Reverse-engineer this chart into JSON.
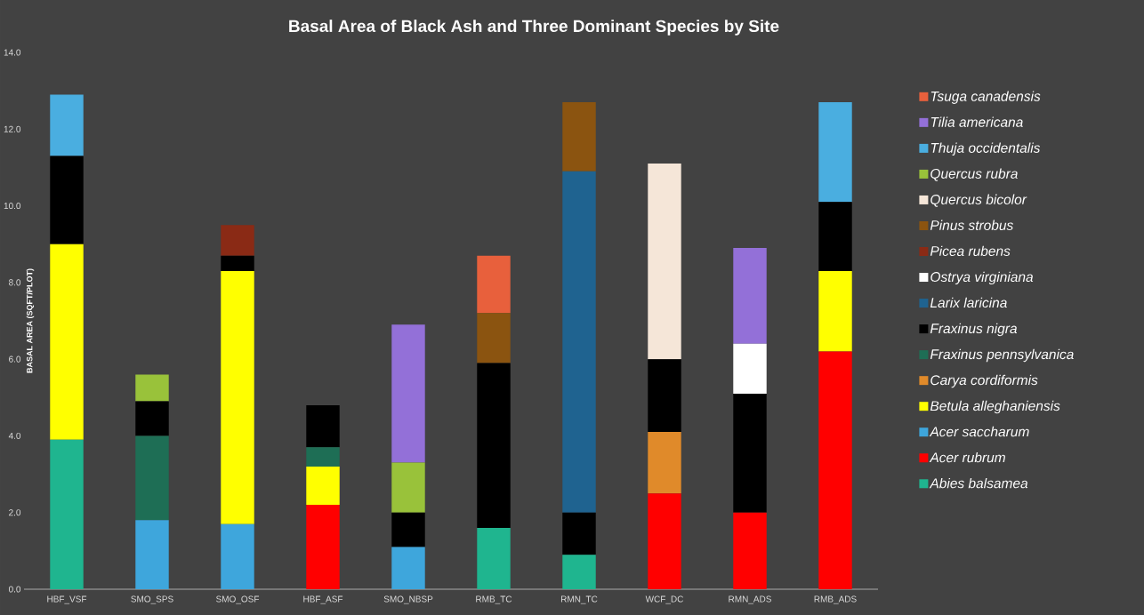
{
  "chart_data": {
    "type": "bar",
    "stacked": true,
    "title": "Basal Area of Black Ash and Three Dominant Species by Site",
    "ylabel": "BASAL AREA (SQFT/PLOT)",
    "categories": [
      "HBF_VSF",
      "SMO_SPS",
      "SMO_OSF",
      "HBF_ASF",
      "SMO_NBSP",
      "RMB_TC",
      "RMN_TC",
      "WCF_DC",
      "RMN_ADS",
      "RMB_ADS"
    ],
    "ylim": [
      0,
      14
    ],
    "yticks": [
      {
        "value": 0,
        "label": "0.0"
      },
      {
        "value": 2,
        "label": "2.0"
      },
      {
        "value": 4,
        "label": "4.0"
      },
      {
        "value": 6,
        "label": "6.0"
      },
      {
        "value": 8,
        "label": "8.0"
      },
      {
        "value": 10,
        "label": "10.0"
      },
      {
        "value": 12,
        "label": "12.0"
      },
      {
        "value": 14,
        "label": "14.0"
      }
    ],
    "grid": false,
    "legend": "right",
    "series": [
      {
        "name": "Abies balsamea",
        "color": "#1fb58f",
        "values": [
          3.9,
          null,
          null,
          null,
          null,
          1.6,
          0.9,
          null,
          null,
          null
        ]
      },
      {
        "name": "Acer rubrum",
        "color": "#ff0000",
        "values": [
          null,
          null,
          null,
          2.2,
          null,
          null,
          null,
          2.5,
          2.0,
          6.2
        ]
      },
      {
        "name": "Acer saccharum",
        "color": "#3ea6dc",
        "values": [
          null,
          1.8,
          1.7,
          null,
          1.1,
          null,
          null,
          null,
          null,
          null
        ]
      },
      {
        "name": "Betula alleghaniensis",
        "color": "#ffff00",
        "values": [
          5.1,
          null,
          6.6,
          1.0,
          null,
          null,
          null,
          null,
          null,
          2.1
        ]
      },
      {
        "name": "Carya cordiformis",
        "color": "#e08a2a",
        "values": [
          null,
          null,
          null,
          null,
          null,
          null,
          null,
          1.6,
          null,
          null
        ]
      },
      {
        "name": "Fraxinus pennsylvanica",
        "color": "#1e6e55",
        "values": [
          null,
          2.2,
          null,
          0.5,
          null,
          null,
          null,
          null,
          null,
          null
        ]
      },
      {
        "name": "Fraxinus nigra",
        "color": "#000000",
        "values": [
          2.3,
          0.9,
          0.4,
          1.1,
          0.9,
          4.3,
          1.1,
          1.9,
          3.1,
          1.8
        ]
      },
      {
        "name": "Larix laricina",
        "color": "#1f6390",
        "values": [
          null,
          null,
          null,
          null,
          null,
          null,
          8.9,
          null,
          null,
          null
        ]
      },
      {
        "name": "Ostrya virginiana",
        "color": "#ffffff",
        "values": [
          null,
          null,
          null,
          null,
          null,
          null,
          null,
          null,
          1.3,
          null
        ]
      },
      {
        "name": "Picea rubens",
        "color": "#8a2a15",
        "values": [
          null,
          null,
          0.8,
          null,
          null,
          null,
          null,
          null,
          null,
          null
        ]
      },
      {
        "name": "Pinus strobus",
        "color": "#8b5410",
        "values": [
          null,
          null,
          null,
          null,
          null,
          1.3,
          1.8,
          null,
          null,
          null
        ]
      },
      {
        "name": "Quercus bicolor",
        "color": "#f5e6d8",
        "values": [
          null,
          null,
          null,
          null,
          null,
          null,
          null,
          5.1,
          null,
          null
        ]
      },
      {
        "name": "Quercus rubra",
        "color": "#99c23a",
        "values": [
          null,
          0.7,
          null,
          null,
          1.3,
          null,
          null,
          null,
          null,
          null
        ]
      },
      {
        "name": "Thuja occidentalis",
        "color": "#4aaee0",
        "values": [
          1.6,
          null,
          null,
          null,
          null,
          null,
          null,
          null,
          null,
          2.6
        ]
      },
      {
        "name": "Tilia americana",
        "color": "#9370d8",
        "values": [
          null,
          null,
          null,
          null,
          3.6,
          null,
          null,
          null,
          2.5,
          null
        ]
      },
      {
        "name": "Tsuga canadensis",
        "color": "#e8603c",
        "values": [
          null,
          null,
          null,
          null,
          null,
          1.5,
          null,
          null,
          null,
          null
        ]
      }
    ]
  }
}
